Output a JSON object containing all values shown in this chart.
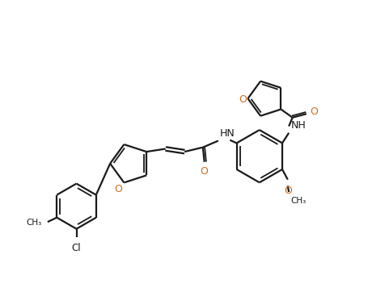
{
  "background_color": "#ffffff",
  "line_color": "#1a1a1a",
  "line_width": 1.6,
  "figsize": [
    4.56,
    3.62
  ],
  "dpi": 100,
  "O_color": "#c87020",
  "label_color": "#1a1a1a",
  "xlim": [
    0,
    10
  ],
  "ylim": [
    0,
    8
  ]
}
